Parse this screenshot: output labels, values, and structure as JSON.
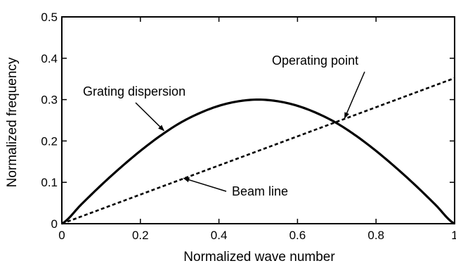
{
  "chart_data": {
    "type": "line",
    "title": "",
    "xlabel": "Normalized wave number",
    "ylabel": "Normalized frequency",
    "xlim": [
      0,
      1
    ],
    "ylim": [
      0,
      0.5
    ],
    "grid": false,
    "x_ticks": [
      0,
      0.2,
      0.4,
      0.6,
      0.8,
      1
    ],
    "x_tick_labels": [
      "0",
      "0.2",
      "0.4",
      "0.6",
      "0.8",
      "1"
    ],
    "y_ticks": [
      0,
      0.1,
      0.2,
      0.3,
      0.4,
      0.5
    ],
    "y_tick_labels": [
      "0",
      "0.1",
      "0.2",
      "0.3",
      "0.4",
      "0.5"
    ],
    "series": [
      {
        "style": "solid",
        "color": "#000000",
        "x": [
          0,
          0.05,
          0.1,
          0.15,
          0.2,
          0.25,
          0.3,
          0.35,
          0.4,
          0.45,
          0.5,
          0.55,
          0.6,
          0.65,
          0.7,
          0.75,
          0.8,
          0.85,
          0.9,
          0.95,
          1
        ],
        "values": [
          0,
          0.047,
          0.093,
          0.136,
          0.176,
          0.212,
          0.243,
          0.267,
          0.285,
          0.296,
          0.3,
          0.296,
          0.285,
          0.267,
          0.243,
          0.212,
          0.176,
          0.136,
          0.093,
          0.047,
          0
        ]
      },
      {
        "style": "dashed",
        "color": "#000000",
        "x": [
          0,
          1
        ],
        "values": [
          0,
          0.352
        ]
      }
    ],
    "annotations": [
      {
        "text": "Operating point",
        "arrow_to": [
          0.72,
          0.255
        ]
      },
      {
        "text": "Grating dispersion",
        "arrow_to": [
          0.26,
          0.225
        ]
      },
      {
        "text": "Beam line",
        "arrow_to": [
          0.31,
          0.11
        ]
      }
    ]
  }
}
